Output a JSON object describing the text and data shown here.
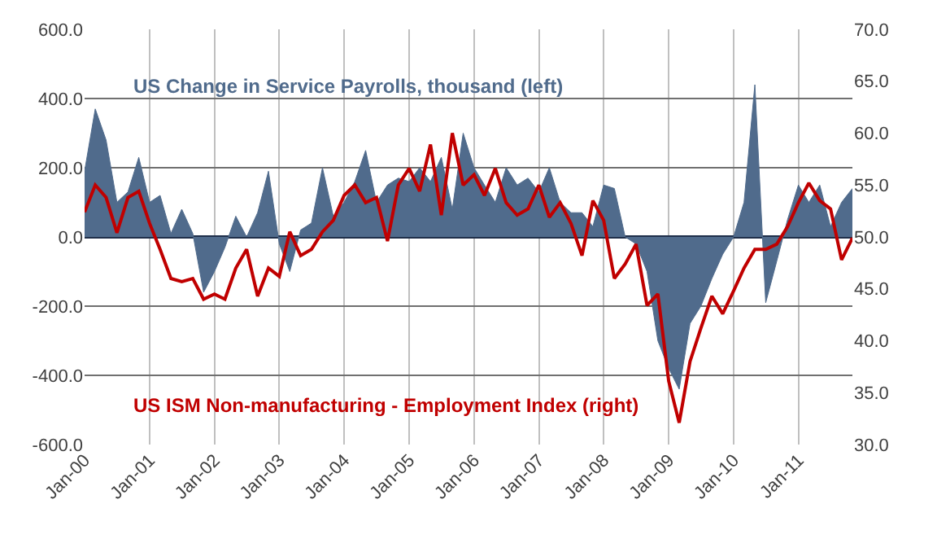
{
  "chart_data": {
    "type": "line",
    "x": [
      "2000-01",
      "2000-03",
      "2000-05",
      "2000-07",
      "2000-09",
      "2000-11",
      "2001-01",
      "2001-03",
      "2001-05",
      "2001-07",
      "2001-09",
      "2001-11",
      "2002-01",
      "2002-03",
      "2002-05",
      "2002-07",
      "2002-09",
      "2002-11",
      "2003-01",
      "2003-03",
      "2003-05",
      "2003-07",
      "2003-09",
      "2003-11",
      "2004-01",
      "2004-03",
      "2004-05",
      "2004-07",
      "2004-09",
      "2004-11",
      "2005-01",
      "2005-03",
      "2005-05",
      "2005-07",
      "2005-09",
      "2005-11",
      "2006-01",
      "2006-03",
      "2006-05",
      "2006-07",
      "2006-09",
      "2006-11",
      "2007-01",
      "2007-03",
      "2007-05",
      "2007-07",
      "2007-09",
      "2007-11",
      "2008-01",
      "2008-03",
      "2008-05",
      "2008-07",
      "2008-09",
      "2008-11",
      "2009-01",
      "2009-03",
      "2009-05",
      "2009-07",
      "2009-09",
      "2009-11",
      "2010-01",
      "2010-03",
      "2010-05",
      "2010-07",
      "2010-09",
      "2010-11",
      "2011-01",
      "2011-03",
      "2011-05",
      "2011-07",
      "2011-09",
      "2011-11"
    ],
    "series": [
      {
        "name": "US Change in Service Payrolls, thousand (left)",
        "type": "area",
        "color": "#506b8c",
        "values": [
          190,
          370,
          280,
          100,
          130,
          230,
          100,
          120,
          10,
          80,
          10,
          -160,
          -100,
          -30,
          60,
          0,
          70,
          190,
          -20,
          -100,
          20,
          40,
          200,
          60,
          100,
          160,
          250,
          100,
          150,
          170,
          160,
          200,
          160,
          230,
          80,
          300,
          200,
          150,
          100,
          200,
          150,
          170,
          130,
          200,
          100,
          70,
          70,
          30,
          150,
          140,
          0,
          -20,
          -100,
          -300,
          -380,
          -440,
          -250,
          -200,
          -120,
          -50,
          0,
          100,
          440,
          -190,
          -70,
          50,
          150,
          100,
          150,
          30,
          100,
          140
        ]
      },
      {
        "name": "US ISM Non-manufacturing - Employment Index (right)",
        "axis": "y2",
        "color": "#c00000",
        "values": [
          52.4,
          55,
          53.8,
          50.4,
          53.8,
          54.4,
          51.3,
          48.8,
          46,
          45.7,
          46,
          44,
          44.5,
          44,
          47,
          48.8,
          44.3,
          47,
          46.2,
          50.5,
          48.2,
          48.8,
          50.5,
          51.6,
          54,
          55,
          53.3,
          53.8,
          49.6,
          55,
          56.6,
          54.4,
          58.9,
          52.1,
          60,
          55,
          56,
          54,
          56.6,
          53.3,
          52.1,
          52.7,
          55,
          51.9,
          53.3,
          51.3,
          48.2,
          53.5,
          51.6,
          46,
          47.4,
          49.3,
          43.4,
          44.5,
          36.1,
          32.1,
          38,
          41.2,
          44.3,
          42.6,
          44.8,
          47,
          48.8,
          48.8,
          49.3,
          51,
          53.3,
          55.2,
          53.5,
          52.7,
          47.8,
          49.9
        ]
      }
    ],
    "xlim": [
      "2000-01",
      "2011-11"
    ],
    "xticks": [
      {
        "value": "2000-01",
        "label": "Jan-00"
      },
      {
        "value": "2001-01",
        "label": "Jan-01"
      },
      {
        "value": "2002-01",
        "label": "Jan-02"
      },
      {
        "value": "2003-01",
        "label": "Jan-03"
      },
      {
        "value": "2004-01",
        "label": "Jan-04"
      },
      {
        "value": "2005-01",
        "label": "Jan-05"
      },
      {
        "value": "2006-01",
        "label": "Jan-06"
      },
      {
        "value": "2007-01",
        "label": "Jan-07"
      },
      {
        "value": "2008-01",
        "label": "Jan-08"
      },
      {
        "value": "2009-01",
        "label": "Jan-09"
      },
      {
        "value": "2010-01",
        "label": "Jan-10"
      },
      {
        "value": "2011-01",
        "label": "Jan-11"
      }
    ],
    "ylim": [
      -600,
      600
    ],
    "yticks": [
      {
        "value": -600,
        "label": "-600.0"
      },
      {
        "value": -400,
        "label": "-400.0"
      },
      {
        "value": -200,
        "label": "-200.0"
      },
      {
        "value": 0,
        "label": "0.0"
      },
      {
        "value": 200,
        "label": "200.0"
      },
      {
        "value": 400,
        "label": "400.0"
      },
      {
        "value": 600,
        "label": "600.0"
      }
    ],
    "y2lim": [
      30,
      70
    ],
    "y2ticks": [
      {
        "value": 30,
        "label": "30.0"
      },
      {
        "value": 35,
        "label": "35.0"
      },
      {
        "value": 40,
        "label": "40.0"
      },
      {
        "value": 45,
        "label": "45.0"
      },
      {
        "value": 50,
        "label": "50.0"
      },
      {
        "value": 55,
        "label": "55.0"
      },
      {
        "value": 60,
        "label": "60.0"
      },
      {
        "value": 65,
        "label": "65.0"
      },
      {
        "value": 70,
        "label": "70.0"
      }
    ],
    "grid": true,
    "legend": false
  }
}
